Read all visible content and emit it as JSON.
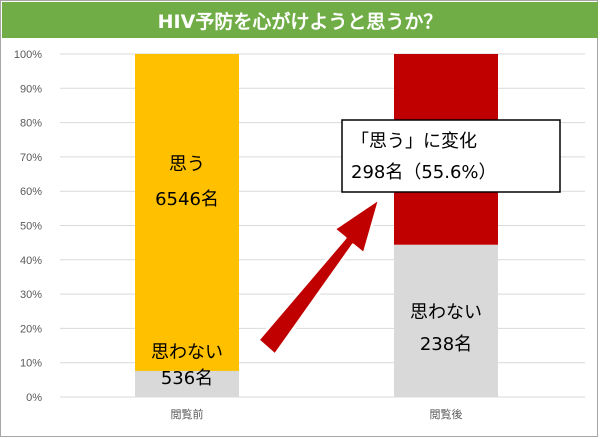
{
  "title": "HIV予防を心がけようと思うか？",
  "colors": {
    "title_bg": "#70ad47",
    "omou": "#ffc000",
    "omowanai": "#d9d9d9",
    "changed": "#c00000",
    "arrow": "#c00000",
    "grid": "#d9d9d9"
  },
  "chart_data": {
    "type": "bar",
    "stacked": true,
    "percent_stacked": true,
    "categories": [
      "閲覧前",
      "閲覧後"
    ],
    "ylim": [
      0,
      100
    ],
    "y_tick_labels": [
      "0%",
      "10%",
      "20%",
      "30%",
      "40%",
      "50%",
      "60%",
      "70%",
      "80%",
      "90%",
      "100%"
    ],
    "grid": true,
    "series": [
      {
        "key": "omowanai",
        "values": [
          7.6,
          44.4
        ],
        "color": "#d9d9d9"
      },
      {
        "key": "changed",
        "values": [
          0,
          55.6
        ],
        "color": "#c00000"
      },
      {
        "key": "omou",
        "values": [
          92.4,
          0
        ],
        "color": "#ffc000"
      }
    ],
    "annotations": {
      "before_omou": [
        "思う",
        "6546名"
      ],
      "before_omowanai": [
        "思わない",
        "536名"
      ],
      "after_omowanai": [
        "思わない",
        "238名"
      ],
      "callout": [
        "「思う」に変化",
        "298名（55.6%）"
      ]
    }
  }
}
